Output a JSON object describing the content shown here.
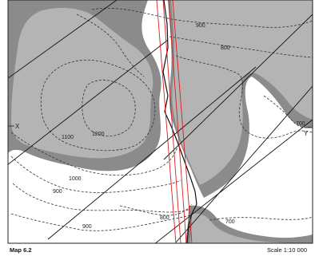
{
  "map": {
    "title": "Map 6.2",
    "scale": "Scale 1:10 000",
    "section_points": {
      "start": "X",
      "end": "Y"
    },
    "contour_labels": {
      "c900_ne": "900",
      "c800_ne": "800",
      "c700_e": "700",
      "c1100": "1100",
      "c1200": "1200",
      "c1000": "1000",
      "c900_w": "900",
      "c900_sw": "900",
      "c800_s": "800",
      "c700_s": "700"
    },
    "colors": {
      "outcrop_light": "#b4b4b4",
      "outcrop_dark": "#8b8b8b",
      "background": "#ffffff",
      "red_lines": "#d62020",
      "frame": "#222222"
    }
  }
}
